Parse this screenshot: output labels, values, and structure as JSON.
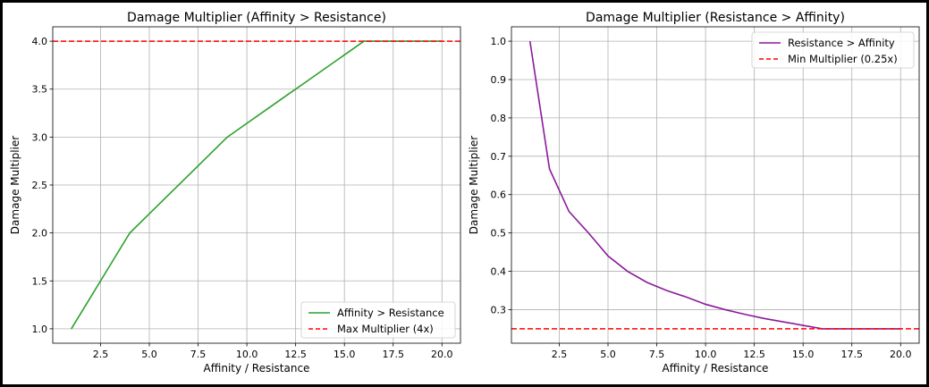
{
  "chart_data": [
    {
      "type": "line",
      "title": "Damage Multiplier (Affinity > Resistance)",
      "xlabel": "Affinity / Resistance",
      "ylabel": "Damage Multiplier",
      "xlim": [
        0.05,
        20.95
      ],
      "ylim": [
        0.85,
        4.15
      ],
      "xticks": [
        2.5,
        5.0,
        7.5,
        10.0,
        12.5,
        15.0,
        17.5,
        20.0
      ],
      "xtick_labels": [
        "2.5",
        "5.0",
        "7.5",
        "10.0",
        "12.5",
        "15.0",
        "17.5",
        "20.0"
      ],
      "yticks": [
        1.0,
        1.5,
        2.0,
        2.5,
        3.0,
        3.5,
        4.0
      ],
      "ytick_labels": [
        "1.0",
        "1.5",
        "2.0",
        "2.5",
        "3.0",
        "3.5",
        "4.0"
      ],
      "grid": true,
      "legend_location": "bottom-right",
      "series": [
        {
          "name": "Affinity > Resistance",
          "color": "#2ca02c",
          "style": "solid",
          "x": [
            1,
            2,
            3,
            4,
            5,
            6,
            7,
            8,
            9,
            10,
            11,
            12,
            13,
            14,
            15,
            16,
            17,
            18,
            19,
            20
          ],
          "y": [
            1.0,
            1.333,
            1.667,
            2.0,
            2.2,
            2.4,
            2.6,
            2.8,
            3.0,
            3.143,
            3.286,
            3.429,
            3.571,
            3.714,
            3.857,
            4.0,
            4.0,
            4.0,
            4.0,
            4.0
          ]
        },
        {
          "name": "Max Multiplier (4x)",
          "color": "#ff0000",
          "style": "dashed",
          "hline": 4.0
        }
      ]
    },
    {
      "type": "line",
      "title": "Damage Multiplier (Resistance > Affinity)",
      "xlabel": "Affinity / Resistance",
      "ylabel": "Damage Multiplier",
      "xlim": [
        0.05,
        20.95
      ],
      "ylim": [
        0.2125,
        1.0375
      ],
      "xticks": [
        2.5,
        5.0,
        7.5,
        10.0,
        12.5,
        15.0,
        17.5,
        20.0
      ],
      "xtick_labels": [
        "2.5",
        "5.0",
        "7.5",
        "10.0",
        "12.5",
        "15.0",
        "17.5",
        "20.0"
      ],
      "yticks": [
        0.3,
        0.4,
        0.5,
        0.6,
        0.7,
        0.8,
        0.9,
        1.0
      ],
      "ytick_labels": [
        "0.3",
        "0.4",
        "0.5",
        "0.6",
        "0.7",
        "0.8",
        "0.9",
        "1.0"
      ],
      "grid": true,
      "legend_location": "top-right",
      "series": [
        {
          "name": "Resistance > Affinity",
          "color": "#8b1a9b",
          "style": "solid",
          "x": [
            1,
            2,
            3,
            4,
            5,
            6,
            7,
            8,
            9,
            10,
            11,
            12,
            13,
            14,
            15,
            16,
            17,
            18,
            19,
            20
          ],
          "y": [
            1.0,
            0.667,
            0.556,
            0.5,
            0.44,
            0.4,
            0.371,
            0.35,
            0.333,
            0.314,
            0.3,
            0.288,
            0.277,
            0.268,
            0.259,
            0.25,
            0.25,
            0.25,
            0.25,
            0.25
          ]
        },
        {
          "name": "Min Multiplier (0.25x)",
          "color": "#ff0000",
          "style": "dashed",
          "hline": 0.25
        }
      ]
    }
  ]
}
